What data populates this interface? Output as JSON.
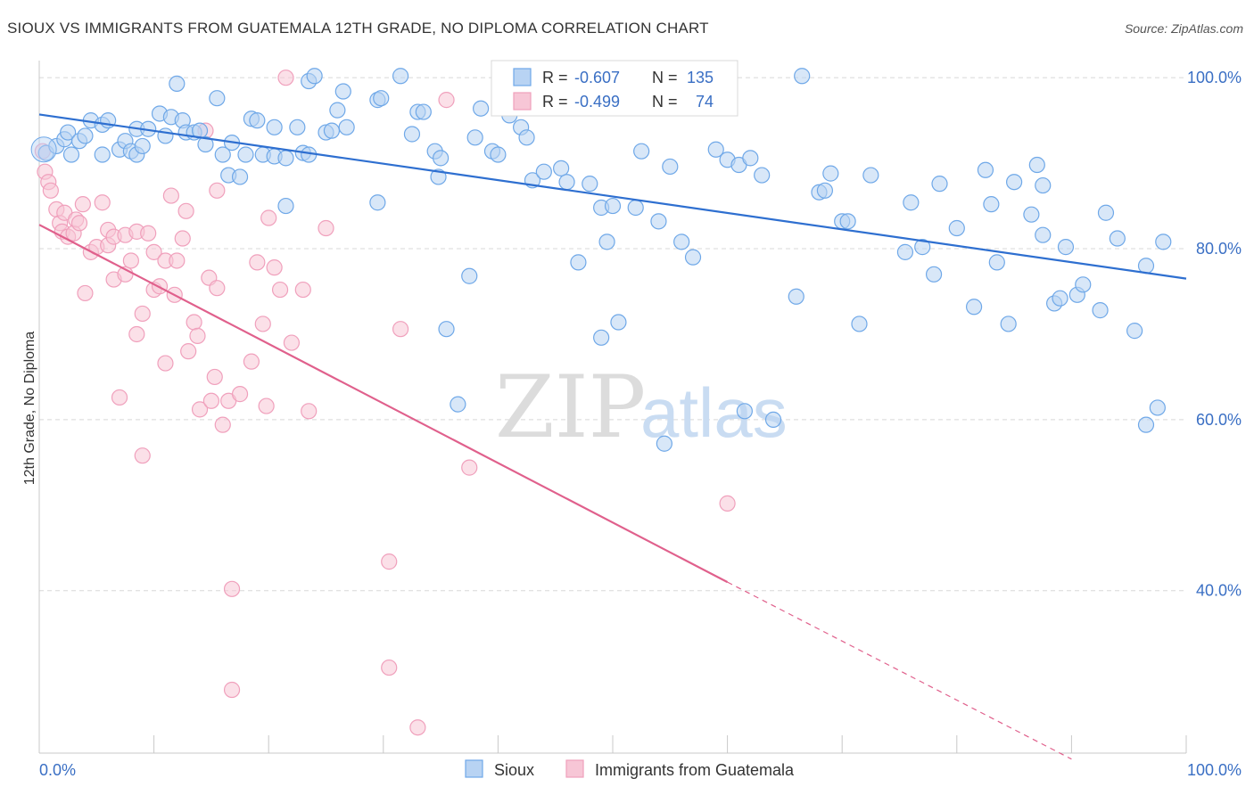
{
  "header": {
    "title": "SIOUX VS IMMIGRANTS FROM GUATEMALA 12TH GRADE, NO DIPLOMA CORRELATION CHART",
    "source": "Source: ZipAtlas.com"
  },
  "watermark": {
    "zip": "ZIP",
    "atlas": "atlas"
  },
  "colors": {
    "blue": "#6fa8e8",
    "blue_fill": "#b8d3f3",
    "blue_line": "#2e6fd0",
    "pink": "#f0a0bc",
    "pink_fill": "#f7c6d6",
    "pink_line": "#e0608c",
    "value_text": "#3a6fc4",
    "grid": "#d8d8d8"
  },
  "legend": {
    "rows": [
      {
        "r_label": "R = ",
        "r_value": "-0.607",
        "n_label": "N = ",
        "n_value": "135"
      },
      {
        "r_label": "R = ",
        "r_value": "-0.499",
        "n_label": "N = ",
        "n_value": "74"
      }
    ]
  },
  "chart_data": {
    "type": "scatter",
    "title": "SIOUX VS IMMIGRANTS FROM GUATEMALA 12TH GRADE, NO DIPLOMA CORRELATION CHART",
    "xlabel": "",
    "ylabel": "12th Grade, No Diploma",
    "xlim": [
      0,
      100
    ],
    "ylim": [
      21,
      102
    ],
    "x_tick_labels": [
      "0.0%",
      "100.0%"
    ],
    "y_ticks": [
      40,
      60,
      80,
      100
    ],
    "y_tick_labels": [
      "40.0%",
      "60.0%",
      "80.0%",
      "100.0%"
    ],
    "grid": true,
    "legend_position": "top-center",
    "series": [
      {
        "name": "Sioux",
        "r": -0.607,
        "n": 135,
        "trend": {
          "x0": 0,
          "y0": 95.7,
          "x1": 100,
          "y1": 76.5
        },
        "points": [
          [
            0.6,
            91.2
          ],
          [
            1.5,
            92.0
          ],
          [
            2.2,
            92.8
          ],
          [
            2.5,
            93.6
          ],
          [
            2.8,
            91.0
          ],
          [
            3.5,
            92.6
          ],
          [
            4.0,
            93.2
          ],
          [
            4.5,
            95.0
          ],
          [
            5.5,
            94.5
          ],
          [
            6.0,
            95.0
          ],
          [
            5.5,
            91.0
          ],
          [
            7.0,
            91.6
          ],
          [
            7.5,
            92.6
          ],
          [
            8.0,
            91.4
          ],
          [
            8.5,
            91.0
          ],
          [
            8.5,
            94.0
          ],
          [
            9.0,
            92.0
          ],
          [
            9.5,
            94.0
          ],
          [
            10.5,
            95.8
          ],
          [
            11.0,
            93.2
          ],
          [
            11.5,
            95.4
          ],
          [
            12.0,
            99.3
          ],
          [
            12.5,
            95.0
          ],
          [
            12.8,
            93.6
          ],
          [
            13.5,
            93.6
          ],
          [
            14.0,
            93.8
          ],
          [
            14.5,
            92.2
          ],
          [
            15.5,
            97.6
          ],
          [
            16.0,
            91.0
          ],
          [
            16.5,
            88.6
          ],
          [
            16.8,
            92.4
          ],
          [
            17.5,
            88.4
          ],
          [
            18.0,
            91.0
          ],
          [
            18.5,
            95.2
          ],
          [
            19.0,
            95.0
          ],
          [
            19.5,
            91.0
          ],
          [
            20.5,
            90.8
          ],
          [
            20.5,
            94.2
          ],
          [
            21.5,
            85.0
          ],
          [
            21.5,
            90.6
          ],
          [
            22.5,
            94.2
          ],
          [
            23.0,
            91.2
          ],
          [
            23.5,
            91.0
          ],
          [
            23.5,
            99.6
          ],
          [
            24.0,
            100.2
          ],
          [
            25.0,
            93.6
          ],
          [
            25.5,
            93.8
          ],
          [
            26.0,
            96.2
          ],
          [
            26.5,
            98.4
          ],
          [
            26.8,
            94.2
          ],
          [
            29.5,
            97.4
          ],
          [
            29.8,
            97.6
          ],
          [
            29.5,
            85.4
          ],
          [
            31.5,
            100.2
          ],
          [
            32.5,
            93.4
          ],
          [
            33.0,
            96.0
          ],
          [
            33.5,
            96.0
          ],
          [
            34.5,
            91.4
          ],
          [
            35.0,
            90.6
          ],
          [
            34.8,
            88.4
          ],
          [
            35.5,
            70.6
          ],
          [
            36.5,
            61.8
          ],
          [
            37.5,
            76.8
          ],
          [
            38.0,
            93.0
          ],
          [
            38.5,
            96.4
          ],
          [
            39.5,
            91.4
          ],
          [
            40.0,
            91.0
          ],
          [
            41.0,
            95.6
          ],
          [
            42.0,
            94.2
          ],
          [
            42.5,
            93.0
          ],
          [
            43.5,
            99.8
          ],
          [
            43.0,
            88.0
          ],
          [
            44.0,
            89.0
          ],
          [
            45.5,
            89.4
          ],
          [
            46.0,
            87.8
          ],
          [
            47.0,
            78.4
          ],
          [
            48.0,
            87.6
          ],
          [
            49.0,
            84.8
          ],
          [
            49.0,
            69.6
          ],
          [
            49.5,
            80.8
          ],
          [
            50.0,
            85.0
          ],
          [
            50.5,
            71.4
          ],
          [
            52.0,
            84.8
          ],
          [
            52.5,
            91.4
          ],
          [
            54.0,
            83.2
          ],
          [
            54.5,
            57.2
          ],
          [
            55.0,
            89.6
          ],
          [
            56.0,
            80.8
          ],
          [
            57.0,
            79.0
          ],
          [
            59.0,
            91.6
          ],
          [
            60.0,
            90.4
          ],
          [
            61.0,
            89.8
          ],
          [
            61.5,
            61.0
          ],
          [
            62.0,
            90.6
          ],
          [
            63.0,
            88.6
          ],
          [
            64.0,
            60.0
          ],
          [
            66.0,
            74.4
          ],
          [
            66.5,
            100.2
          ],
          [
            68.0,
            86.6
          ],
          [
            68.5,
            86.8
          ],
          [
            69.0,
            88.8
          ],
          [
            70.0,
            83.2
          ],
          [
            70.5,
            83.2
          ],
          [
            71.5,
            71.2
          ],
          [
            72.5,
            88.6
          ],
          [
            75.5,
            79.6
          ],
          [
            76.0,
            85.4
          ],
          [
            77.0,
            80.2
          ],
          [
            78.0,
            77.0
          ],
          [
            78.5,
            87.6
          ],
          [
            80.0,
            82.4
          ],
          [
            81.5,
            73.2
          ],
          [
            82.5,
            89.2
          ],
          [
            83.0,
            85.2
          ],
          [
            83.5,
            78.4
          ],
          [
            84.5,
            71.2
          ],
          [
            85.0,
            87.8
          ],
          [
            86.5,
            84.0
          ],
          [
            87.0,
            89.8
          ],
          [
            87.5,
            87.4
          ],
          [
            87.5,
            81.6
          ],
          [
            88.5,
            73.6
          ],
          [
            89.0,
            74.2
          ],
          [
            89.5,
            80.2
          ],
          [
            90.5,
            74.6
          ],
          [
            91.0,
            75.8
          ],
          [
            92.5,
            72.8
          ],
          [
            93.0,
            84.2
          ],
          [
            94.0,
            81.2
          ],
          [
            95.5,
            70.4
          ],
          [
            96.5,
            78.0
          ],
          [
            96.5,
            59.4
          ],
          [
            97.5,
            61.4
          ],
          [
            98.0,
            80.8
          ]
        ]
      },
      {
        "name": "Immigrants from Guatemala",
        "r": -0.499,
        "n": 74,
        "trend": {
          "x0": 0,
          "y0": 82.8,
          "x1": 60,
          "y1": 41.0
        },
        "trend_dashed": {
          "x0": 60,
          "y0": 41.0,
          "x1": 90,
          "y1": 20.3
        },
        "points": [
          [
            0.3,
            91.4
          ],
          [
            0.5,
            89.0
          ],
          [
            0.8,
            87.8
          ],
          [
            1.0,
            86.8
          ],
          [
            1.5,
            84.6
          ],
          [
            1.8,
            83.0
          ],
          [
            2.0,
            82.0
          ],
          [
            2.2,
            84.2
          ],
          [
            2.5,
            81.4
          ],
          [
            3.0,
            81.8
          ],
          [
            3.2,
            83.4
          ],
          [
            3.5,
            83.0
          ],
          [
            3.8,
            85.2
          ],
          [
            4.0,
            74.8
          ],
          [
            4.5,
            79.6
          ],
          [
            5.0,
            80.2
          ],
          [
            5.5,
            85.4
          ],
          [
            6.0,
            82.2
          ],
          [
            6.0,
            80.4
          ],
          [
            6.5,
            81.4
          ],
          [
            6.5,
            76.4
          ],
          [
            7.0,
            62.6
          ],
          [
            7.5,
            77.0
          ],
          [
            7.5,
            81.6
          ],
          [
            8.0,
            78.6
          ],
          [
            8.5,
            70.0
          ],
          [
            8.5,
            82.0
          ],
          [
            9.0,
            55.8
          ],
          [
            9.0,
            72.4
          ],
          [
            9.5,
            81.8
          ],
          [
            10.0,
            75.2
          ],
          [
            10.0,
            79.6
          ],
          [
            10.5,
            75.6
          ],
          [
            11.0,
            66.6
          ],
          [
            11.0,
            78.6
          ],
          [
            11.5,
            86.2
          ],
          [
            11.8,
            74.6
          ],
          [
            12.0,
            78.6
          ],
          [
            12.5,
            81.2
          ],
          [
            12.8,
            84.4
          ],
          [
            13.0,
            68.0
          ],
          [
            13.5,
            71.4
          ],
          [
            13.8,
            69.8
          ],
          [
            14.0,
            61.2
          ],
          [
            14.5,
            93.8
          ],
          [
            14.8,
            76.6
          ],
          [
            15.0,
            62.2
          ],
          [
            15.3,
            65.0
          ],
          [
            15.5,
            86.8
          ],
          [
            15.5,
            75.4
          ],
          [
            16.0,
            59.4
          ],
          [
            16.5,
            62.2
          ],
          [
            16.8,
            40.2
          ],
          [
            16.8,
            28.4
          ],
          [
            17.5,
            63.0
          ],
          [
            18.5,
            66.8
          ],
          [
            19.0,
            78.4
          ],
          [
            19.5,
            71.2
          ],
          [
            19.8,
            61.6
          ],
          [
            20.0,
            83.6
          ],
          [
            20.5,
            77.8
          ],
          [
            21.0,
            75.2
          ],
          [
            21.5,
            100.0
          ],
          [
            22.0,
            69.0
          ],
          [
            23.0,
            75.2
          ],
          [
            23.5,
            61.0
          ],
          [
            25.0,
            82.4
          ],
          [
            30.5,
            43.4
          ],
          [
            30.5,
            31.0
          ],
          [
            31.5,
            70.6
          ],
          [
            33.0,
            24.0
          ],
          [
            35.5,
            97.4
          ],
          [
            37.5,
            54.4
          ],
          [
            60.0,
            50.2
          ]
        ]
      }
    ]
  }
}
